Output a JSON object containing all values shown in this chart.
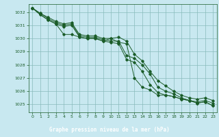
{
  "xlabel": "Graphe pression niveau de la mer (hPa)",
  "bg_color": "#c8e8f0",
  "grid_color": "#88bbbb",
  "line_color": "#1a5c28",
  "label_bg": "#2d7a3a",
  "label_fg": "#ffffff",
  "ylim": [
    1024.4,
    1032.6
  ],
  "xlim": [
    -0.5,
    23.5
  ],
  "yticks": [
    1025,
    1026,
    1027,
    1028,
    1029,
    1030,
    1031,
    1032
  ],
  "xticks": [
    0,
    1,
    2,
    3,
    4,
    5,
    6,
    7,
    8,
    9,
    10,
    11,
    12,
    13,
    14,
    15,
    16,
    17,
    18,
    19,
    20,
    21,
    22,
    23
  ],
  "series": [
    [
      1032.3,
      1031.8,
      1031.4,
      1031.1,
      1030.3,
      1030.3,
      1030.1,
      1030.0,
      1030.0,
      1029.8,
      1030.0,
      1029.7,
      1029.6,
      1027.0,
      1026.3,
      1026.1,
      1025.7,
      1025.7,
      1025.6,
      1025.4,
      1025.3,
      1025.1,
      1025.2,
      1024.9
    ],
    [
      1032.3,
      1031.8,
      1031.4,
      1031.1,
      1030.9,
      1031.0,
      1030.1,
      1030.0,
      1030.0,
      1029.8,
      1029.7,
      1029.6,
      1028.4,
      1028.2,
      1027.5,
      1026.5,
      1025.9,
      1025.7,
      1025.6,
      1025.4,
      1025.3,
      1025.1,
      1025.2,
      1024.9
    ],
    [
      1032.3,
      1031.9,
      1031.5,
      1031.2,
      1031.0,
      1031.1,
      1030.2,
      1030.1,
      1030.1,
      1029.9,
      1029.8,
      1029.8,
      1028.7,
      1028.5,
      1028.0,
      1027.3,
      1026.3,
      1026.0,
      1025.8,
      1025.5,
      1025.3,
      1025.2,
      1025.3,
      1025.1
    ],
    [
      1032.3,
      1031.9,
      1031.6,
      1031.3,
      1031.1,
      1031.2,
      1030.3,
      1030.2,
      1030.2,
      1030.0,
      1030.0,
      1030.1,
      1029.8,
      1028.8,
      1028.3,
      1027.5,
      1026.8,
      1026.4,
      1026.0,
      1025.7,
      1025.5,
      1025.4,
      1025.5,
      1025.3
    ]
  ]
}
